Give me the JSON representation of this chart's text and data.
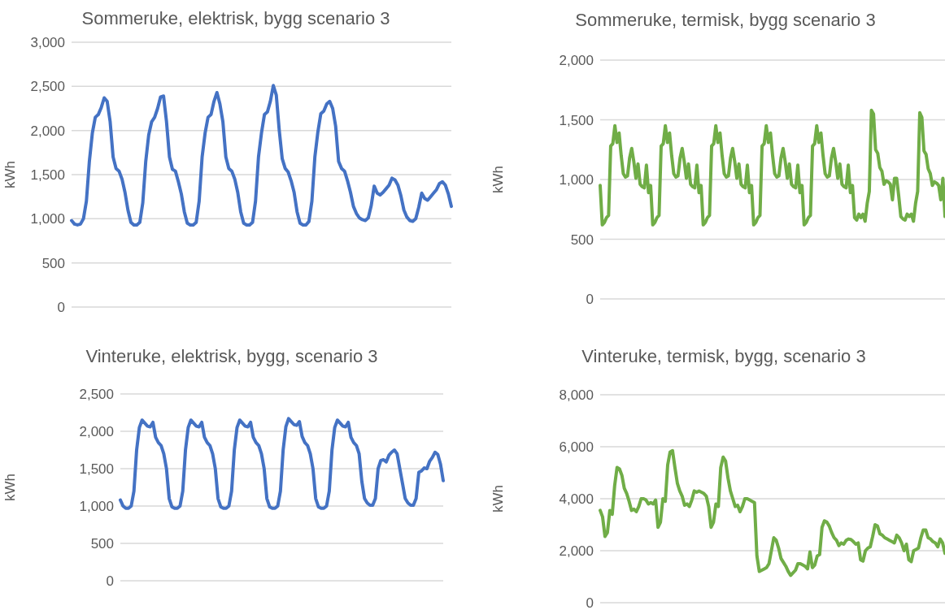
{
  "chart_data": [
    {
      "type": "line",
      "title": "Sommeruke, elektrisk, bygg scenario 3",
      "ylabel": "kWh",
      "grid": "y",
      "tick_labels": "y",
      "categories": [
        null,
        null,
        null,
        null,
        null,
        null,
        null,
        null,
        null,
        null,
        null,
        null,
        null,
        null,
        null,
        null,
        null,
        null,
        null,
        null,
        null,
        null,
        null,
        null,
        null,
        null,
        null,
        null,
        null,
        null,
        null,
        null,
        null,
        null,
        null,
        null,
        null,
        null,
        null,
        null,
        null,
        null,
        null,
        null,
        null,
        null,
        null,
        null,
        null,
        null,
        null,
        null,
        null,
        null,
        null,
        null,
        null,
        null,
        null,
        null,
        null,
        null,
        null,
        null,
        null,
        null,
        null,
        null,
        null,
        null,
        null,
        null,
        null,
        null,
        null,
        null,
        null,
        null,
        null,
        null,
        null,
        null,
        null,
        null,
        null,
        null,
        null,
        null,
        null,
        null,
        null,
        null,
        null,
        null,
        null,
        null,
        null,
        null,
        null,
        null,
        null,
        null,
        null,
        null,
        null,
        null,
        null,
        null,
        null,
        null,
        null,
        null,
        null,
        null,
        null,
        null,
        null,
        null,
        null,
        null,
        null,
        null,
        null,
        null,
        null,
        null,
        null,
        null,
        null
      ],
      "series": [
        {
          "color": "#4472c4",
          "values": [
            980,
            940,
            930,
            940,
            1000,
            1200,
            1650,
            1970,
            2150,
            2180,
            2260,
            2370,
            2330,
            2100,
            1700,
            1570,
            1540,
            1450,
            1300,
            1100,
            960,
            930,
            930,
            960,
            1180,
            1650,
            1950,
            2100,
            2150,
            2250,
            2380,
            2390,
            2100,
            1700,
            1560,
            1540,
            1420,
            1280,
            1080,
            950,
            930,
            930,
            960,
            1200,
            1700,
            1970,
            2150,
            2180,
            2330,
            2430,
            2300,
            2100,
            1700,
            1570,
            1540,
            1450,
            1300,
            1080,
            950,
            930,
            930,
            960,
            1200,
            1700,
            1970,
            2180,
            2210,
            2330,
            2510,
            2400,
            2000,
            1680,
            1570,
            1530,
            1430,
            1300,
            1080,
            950,
            930,
            930,
            970,
            1200,
            1700,
            1980,
            2190,
            2220,
            2300,
            2330,
            2250,
            2050,
            1650,
            1570,
            1540,
            1430,
            1300,
            1140,
            1060,
            1010,
            990,
            980,
            1010,
            1150,
            1370,
            1290,
            1270,
            1300,
            1340,
            1380,
            1460,
            1440,
            1380,
            1260,
            1100,
            1020,
            980,
            970,
            1000,
            1130,
            1290,
            1230,
            1210,
            1250,
            1290,
            1330,
            1400,
            1420,
            1380,
            1280,
            1140
          ]
        }
      ],
      "ylim": [
        0,
        3000
      ],
      "yticks": [
        {
          "value": 0,
          "label": "0"
        },
        {
          "value": 500,
          "label": "500"
        },
        {
          "value": 1000,
          "label": "1,000"
        },
        {
          "value": 1500,
          "label": "1,500"
        },
        {
          "value": 2000,
          "label": "2,000"
        },
        {
          "value": 2500,
          "label": "2,500"
        },
        {
          "value": 3000,
          "label": "3,000"
        }
      ]
    },
    {
      "type": "line",
      "title": "Sommeruke, termisk, bygg scenario 3",
      "ylabel": "kWh",
      "grid": "y",
      "tick_labels": "y",
      "categories": [
        null,
        null,
        null,
        null,
        null,
        null,
        null,
        null,
        null,
        null,
        null,
        null,
        null,
        null,
        null,
        null,
        null,
        null,
        null,
        null,
        null,
        null,
        null,
        null,
        null,
        null,
        null,
        null,
        null,
        null,
        null,
        null,
        null,
        null,
        null,
        null,
        null,
        null,
        null,
        null,
        null,
        null,
        null,
        null,
        null,
        null,
        null,
        null,
        null,
        null,
        null,
        null,
        null,
        null,
        null,
        null,
        null,
        null,
        null,
        null,
        null,
        null,
        null,
        null,
        null,
        null,
        null,
        null,
        null,
        null,
        null,
        null,
        null,
        null,
        null,
        null,
        null,
        null,
        null,
        null,
        null,
        null,
        null,
        null,
        null,
        null,
        null,
        null,
        null,
        null,
        null,
        null,
        null,
        null,
        null,
        null,
        null,
        null,
        null,
        null,
        null,
        null,
        null,
        null,
        null,
        null,
        null,
        null,
        null,
        null,
        null,
        null,
        null,
        null,
        null,
        null,
        null,
        null,
        null,
        null,
        null,
        null,
        null,
        null,
        null,
        null,
        null,
        null,
        null,
        null,
        null,
        null,
        null,
        null,
        null,
        null,
        null,
        null,
        null,
        null,
        null,
        null,
        null,
        null,
        null,
        null,
        null,
        null,
        null,
        null,
        null,
        null,
        null,
        null,
        null,
        null,
        null,
        null,
        null,
        null,
        null,
        null,
        null,
        null,
        null
      ],
      "series": [
        {
          "color": "#70ad47",
          "values": [
            950,
            620,
            640,
            680,
            700,
            1280,
            1300,
            1450,
            1310,
            1390,
            1200,
            1050,
            1020,
            1030,
            1180,
            1260,
            1150,
            1010,
            1130,
            960,
            940,
            930,
            1120,
            890,
            950,
            620,
            640,
            680,
            700,
            1280,
            1300,
            1450,
            1310,
            1390,
            1200,
            1050,
            1020,
            1030,
            1180,
            1260,
            1150,
            1010,
            1130,
            960,
            940,
            930,
            1120,
            890,
            950,
            620,
            640,
            680,
            700,
            1280,
            1300,
            1450,
            1310,
            1390,
            1200,
            1050,
            1020,
            1030,
            1180,
            1260,
            1150,
            1010,
            1130,
            960,
            940,
            930,
            1120,
            890,
            950,
            620,
            640,
            680,
            700,
            1280,
            1300,
            1450,
            1310,
            1390,
            1200,
            1050,
            1020,
            1030,
            1180,
            1260,
            1150,
            1010,
            1130,
            960,
            940,
            930,
            1120,
            890,
            950,
            620,
            640,
            680,
            700,
            1280,
            1300,
            1450,
            1310,
            1390,
            1200,
            1050,
            1020,
            1030,
            1180,
            1260,
            1150,
            1010,
            1130,
            960,
            940,
            930,
            1120,
            890,
            950,
            680,
            660,
            710,
            680,
            710,
            650,
            800,
            900,
            1580,
            1550,
            1250,
            1220,
            1100,
            1070,
            960,
            990,
            980,
            960,
            830,
            1010,
            1010,
            860,
            690,
            670,
            660,
            710,
            690,
            710,
            650,
            800,
            900,
            1560,
            1520,
            1240,
            1210,
            1090,
            1050,
            950,
            980,
            970,
            950,
            830,
            1010,
            690
          ]
        }
      ],
      "ylim": [
        0,
        2000
      ],
      "yticks": [
        {
          "value": 0,
          "label": "0"
        },
        {
          "value": 500,
          "label": "500"
        },
        {
          "value": 1000,
          "label": "1,000"
        },
        {
          "value": 1500,
          "label": "1,500"
        },
        {
          "value": 2000,
          "label": "2,000"
        }
      ]
    },
    {
      "type": "line",
      "title": "Vinteruke, elektrisk, bygg, scenario 3",
      "ylabel": "kWh",
      "grid": "y",
      "tick_labels": "y",
      "categories": [
        null,
        null,
        null,
        null,
        null,
        null,
        null,
        null,
        null,
        null,
        null,
        null,
        null,
        null,
        null,
        null,
        null,
        null,
        null,
        null,
        null,
        null,
        null,
        null,
        null,
        null,
        null,
        null,
        null,
        null,
        null,
        null,
        null,
        null,
        null,
        null,
        null,
        null,
        null,
        null,
        null,
        null,
        null,
        null,
        null,
        null,
        null,
        null,
        null,
        null,
        null,
        null,
        null,
        null,
        null,
        null,
        null,
        null,
        null,
        null,
        null,
        null,
        null,
        null,
        null,
        null,
        null,
        null,
        null,
        null,
        null,
        null,
        null,
        null,
        null,
        null,
        null,
        null,
        null,
        null,
        null,
        null,
        null,
        null,
        null,
        null,
        null,
        null,
        null,
        null,
        null,
        null,
        null,
        null,
        null,
        null,
        null,
        null,
        null,
        null,
        null,
        null,
        null,
        null,
        null,
        null,
        null,
        null,
        null,
        null,
        null,
        null,
        null,
        null,
        null,
        null,
        null,
        null,
        null,
        null
      ],
      "series": [
        {
          "color": "#4472c4",
          "values": [
            1080,
            1000,
            970,
            970,
            1000,
            1200,
            1750,
            2050,
            2150,
            2110,
            2070,
            2060,
            2120,
            1920,
            1850,
            1810,
            1700,
            1500,
            1100,
            990,
            970,
            970,
            1000,
            1200,
            1750,
            2050,
            2150,
            2110,
            2070,
            2060,
            2120,
            1920,
            1850,
            1810,
            1700,
            1500,
            1100,
            990,
            970,
            970,
            1000,
            1200,
            1750,
            2050,
            2150,
            2110,
            2070,
            2060,
            2120,
            1920,
            1850,
            1810,
            1700,
            1500,
            1100,
            990,
            970,
            970,
            1000,
            1200,
            1750,
            2060,
            2170,
            2130,
            2090,
            2080,
            2130,
            1930,
            1850,
            1810,
            1700,
            1500,
            1100,
            990,
            970,
            970,
            1000,
            1200,
            1750,
            2050,
            2150,
            2110,
            2070,
            2060,
            2120,
            1920,
            1850,
            1810,
            1700,
            1330,
            1100,
            1040,
            1010,
            1010,
            1100,
            1500,
            1610,
            1620,
            1590,
            1680,
            1720,
            1750,
            1700,
            1500,
            1300,
            1100,
            1040,
            1010,
            1010,
            1100,
            1450,
            1470,
            1510,
            1500,
            1600,
            1650,
            1720,
            1690,
            1560,
            1340
          ]
        }
      ],
      "ylim": [
        0,
        2500
      ],
      "yticks": [
        {
          "value": 0,
          "label": "0"
        },
        {
          "value": 500,
          "label": "500"
        },
        {
          "value": 1000,
          "label": "1,000"
        },
        {
          "value": 1500,
          "label": "1,500"
        },
        {
          "value": 2000,
          "label": "2,000"
        },
        {
          "value": 2500,
          "label": "2,500"
        }
      ]
    },
    {
      "type": "line",
      "title": "Vinteruke, termisk, bygg, scenario 3",
      "ylabel": "kWh",
      "grid": "y",
      "tick_labels": "y",
      "categories": [
        null,
        null,
        null,
        null,
        null,
        null,
        null,
        null,
        null,
        null,
        null,
        null,
        null,
        null,
        null,
        null,
        null,
        null,
        null,
        null,
        null,
        null,
        null,
        null,
        null,
        null,
        null,
        null,
        null,
        null,
        null,
        null,
        null,
        null,
        null,
        null,
        null,
        null,
        null,
        null,
        null,
        null,
        null,
        null,
        null,
        null,
        null,
        null,
        null,
        null,
        null,
        null,
        null,
        null,
        null,
        null,
        null,
        null,
        null,
        null,
        null,
        null,
        null,
        null,
        null,
        null,
        null,
        null,
        null,
        null,
        null,
        null,
        null,
        null,
        null,
        null,
        null,
        null,
        null,
        null,
        null,
        null,
        null,
        null,
        null,
        null,
        null,
        null,
        null,
        null,
        null,
        null,
        null,
        null,
        null,
        null,
        null,
        null,
        null,
        null,
        null,
        null,
        null,
        null,
        null,
        null,
        null,
        null,
        null,
        null,
        null,
        null,
        null,
        null,
        null,
        null,
        null,
        null,
        null,
        null,
        null,
        null,
        null,
        null,
        null,
        null,
        null,
        null,
        null,
        null,
        null,
        null,
        null,
        null,
        null,
        null,
        null,
        null,
        null,
        null,
        null,
        null,
        null,
        null
      ],
      "series": [
        {
          "color": "#70ad47",
          "values": [
            3550,
            3300,
            2550,
            2700,
            3550,
            3400,
            4500,
            5200,
            5150,
            4900,
            4400,
            4200,
            3900,
            3550,
            3600,
            3500,
            3700,
            4000,
            4000,
            3950,
            3800,
            3850,
            3800,
            3950,
            2900,
            3100,
            4000,
            3900,
            5300,
            5800,
            5850,
            5200,
            4600,
            4300,
            4100,
            3750,
            3800,
            3700,
            3950,
            4300,
            4250,
            4300,
            4250,
            4200,
            4100,
            3700,
            2900,
            3100,
            3800,
            3700,
            5200,
            5600,
            5450,
            4800,
            4300,
            4000,
            3700,
            3750,
            3500,
            3700,
            4000,
            4000,
            3950,
            3900,
            3850,
            1800,
            1200,
            1250,
            1300,
            1350,
            1500,
            2000,
            2500,
            2400,
            2100,
            1700,
            1550,
            1400,
            1200,
            1050,
            1150,
            1250,
            1500,
            1500,
            1450,
            1400,
            1300,
            1950,
            1350,
            1450,
            1800,
            1850,
            2900,
            3150,
            3100,
            2950,
            2700,
            2500,
            2400,
            2200,
            2300,
            2250,
            2400,
            2450,
            2430,
            2350,
            2250,
            2300,
            1650,
            1600,
            2000,
            2100,
            2150,
            2550,
            3000,
            2950,
            2650,
            2600,
            2500,
            2450,
            2400,
            2350,
            2300,
            2600,
            2500,
            2300,
            2000,
            2250,
            1650,
            1580,
            2000,
            2050,
            2100,
            2500,
            2800,
            2800,
            2500,
            2450,
            2350,
            2300,
            2150,
            2450,
            2300,
            1900
          ]
        }
      ],
      "ylim": [
        0,
        8000
      ],
      "yticks": [
        {
          "value": 0,
          "label": "0"
        },
        {
          "value": 2000,
          "label": "2,000"
        },
        {
          "value": 4000,
          "label": "4,000"
        },
        {
          "value": 6000,
          "label": "6,000"
        },
        {
          "value": 8000,
          "label": "8,000"
        }
      ]
    }
  ]
}
